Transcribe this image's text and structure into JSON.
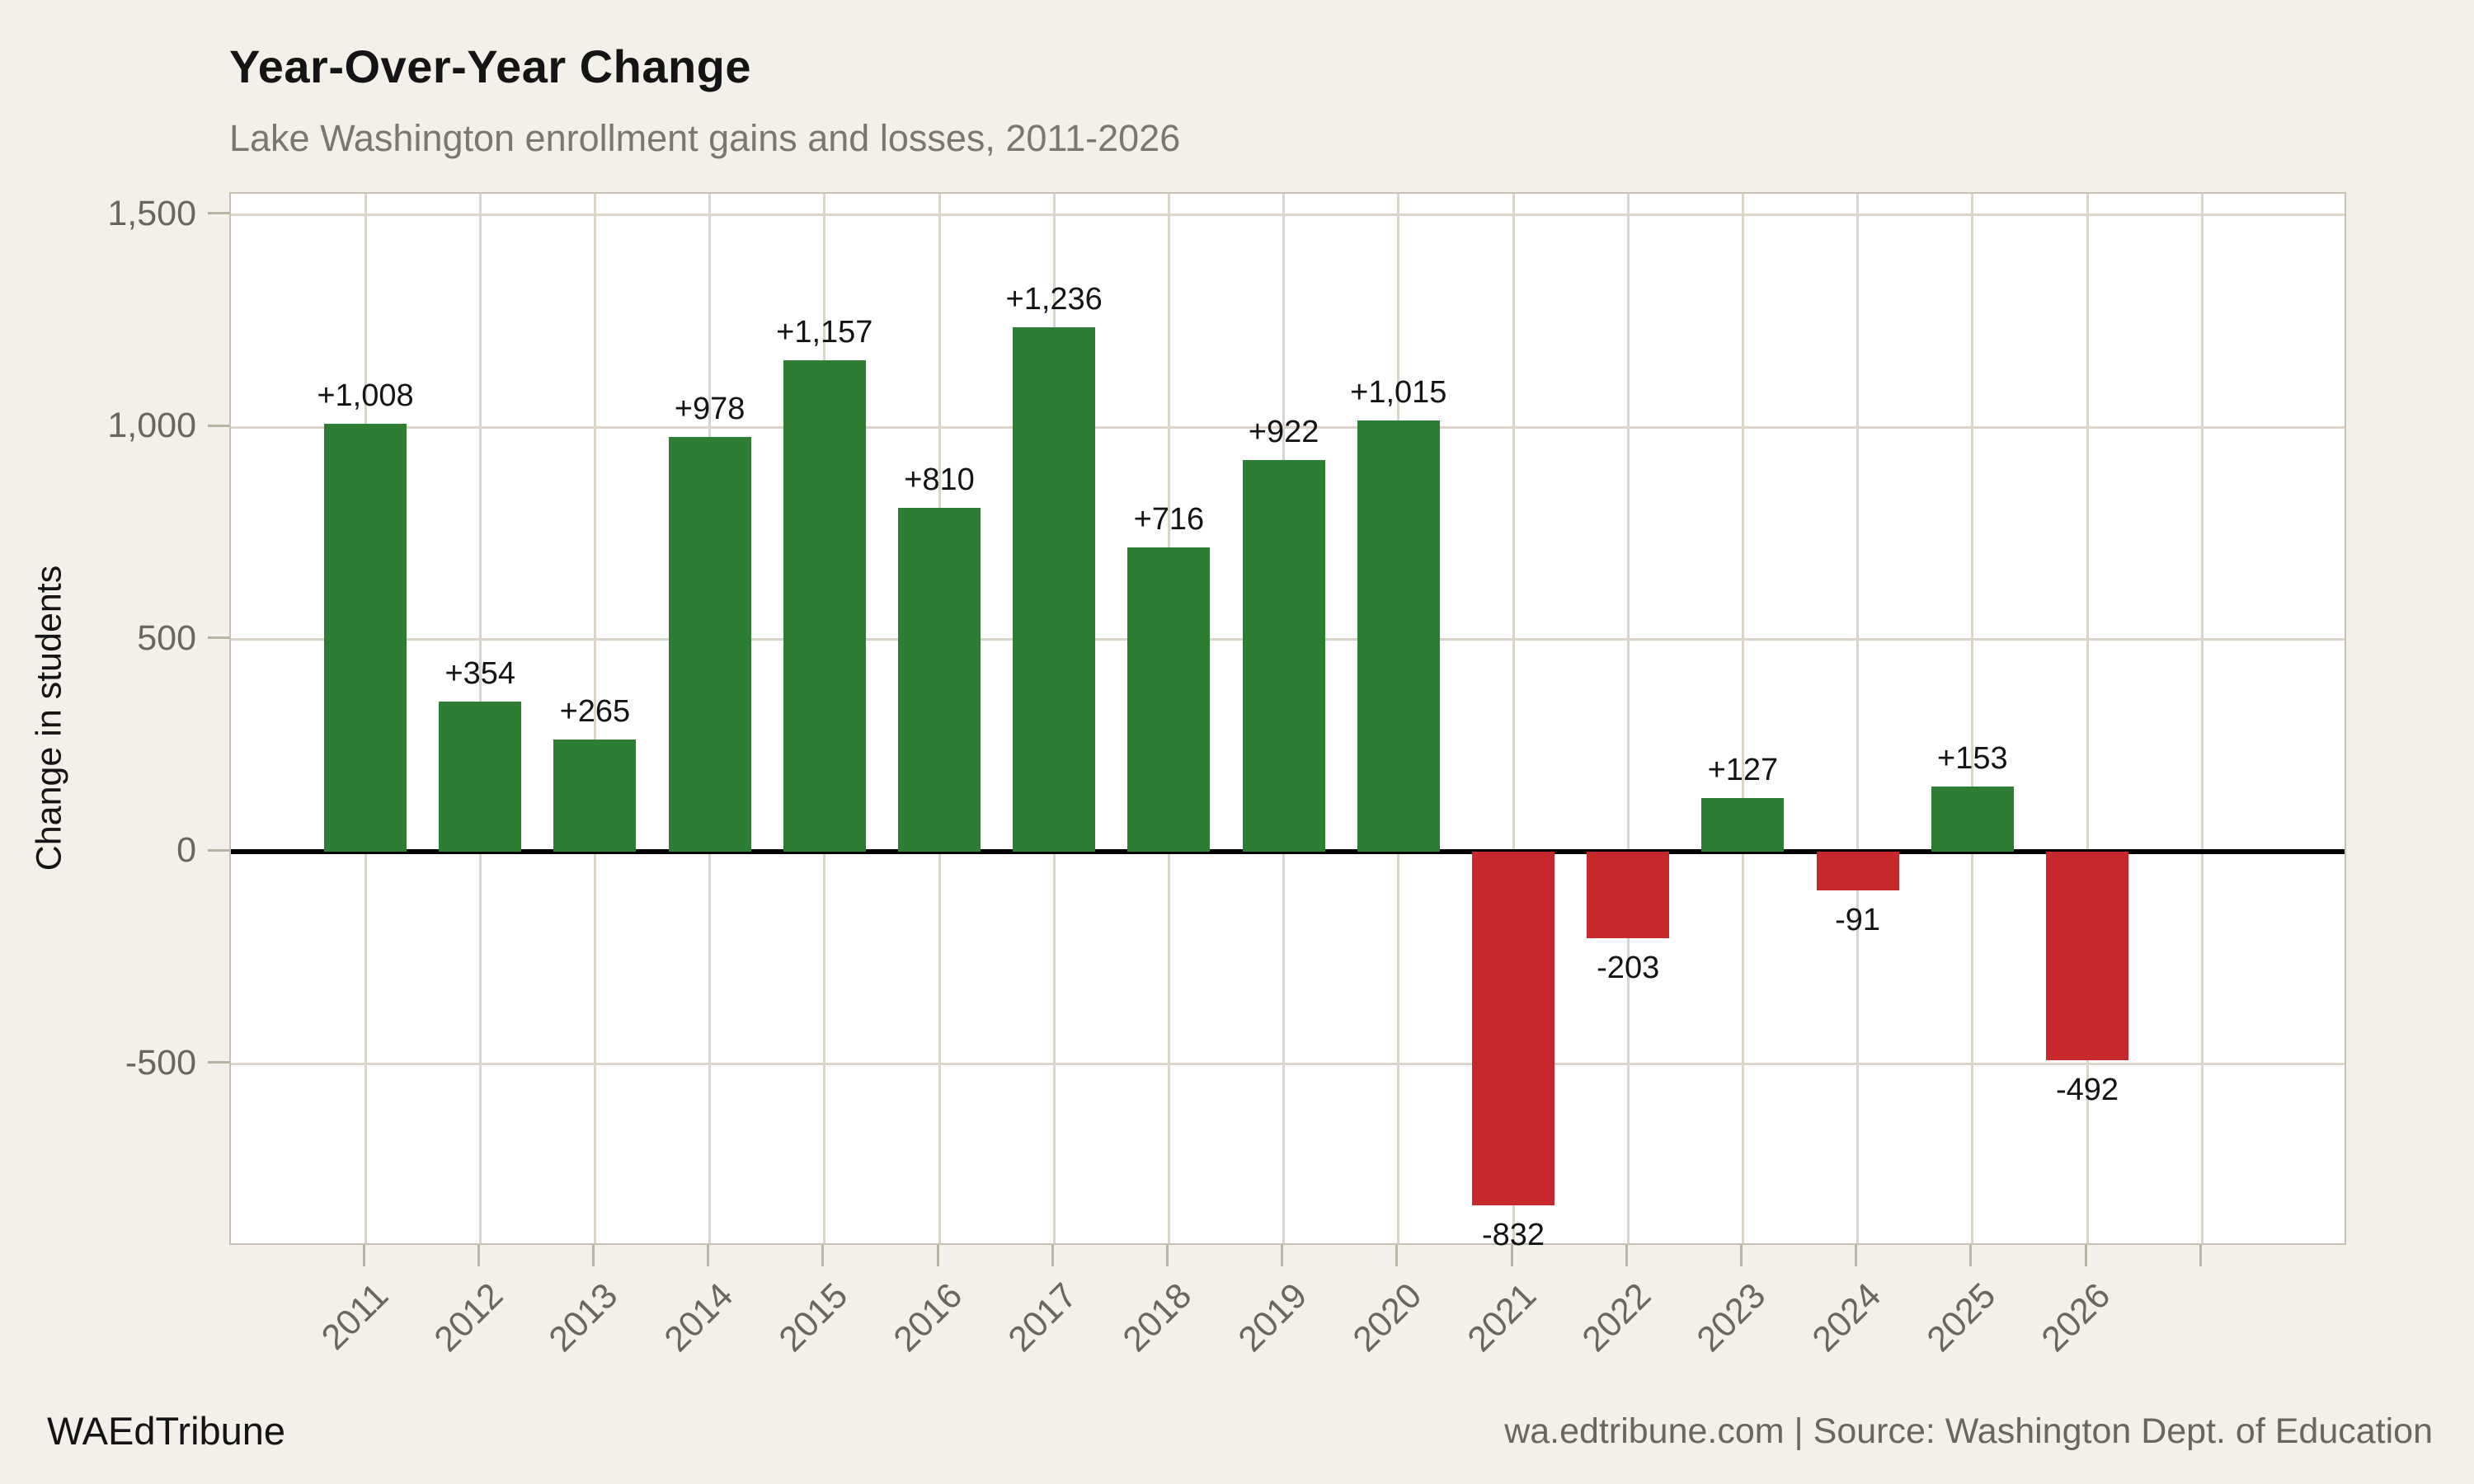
{
  "header": {
    "title": "Year-Over-Year Change",
    "subtitle": "Lake Washington enrollment gains and losses, 2011-2026"
  },
  "footer": {
    "brand": "WAEdTribune",
    "source": "wa.edtribune.com | Source: Washington Dept. of Education"
  },
  "colors": {
    "background": "#f3efe9",
    "plot_background": "#ffffff",
    "grid": "#dad4c9",
    "axis_line": "#b9b3a6",
    "axis_text": "#6b655e",
    "positive_bar": "#2e7d32",
    "negative_bar": "#c6282c",
    "zero_line": "#000000",
    "title_text": "#141414",
    "subtitle_text": "#7c766e"
  },
  "chart_data": {
    "type": "bar",
    "title": "Year-Over-Year Change",
    "subtitle": "Lake Washington enrollment gains and losses, 2011-2026",
    "xlabel": "",
    "ylabel": "Change in students",
    "categories": [
      "2011",
      "2012",
      "2013",
      "2014",
      "2015",
      "2016",
      "2017",
      "2018",
      "2019",
      "2020",
      "2021",
      "2022",
      "2023",
      "2024",
      "2025",
      "2026"
    ],
    "values": [
      1008,
      354,
      265,
      978,
      1157,
      810,
      1236,
      716,
      922,
      1015,
      -832,
      -203,
      127,
      -91,
      153,
      -492
    ],
    "value_labels": [
      "+1,008",
      "+354",
      "+265",
      "+978",
      "+1,157",
      "+810",
      "+1,236",
      "+716",
      "+922",
      "+1,015",
      "-832",
      "-203",
      "+127",
      "-91",
      "+153",
      "-492"
    ],
    "ylim": [
      -930,
      1550
    ],
    "yticks": [
      {
        "value": 1500,
        "label": "1,500"
      },
      {
        "value": 1000,
        "label": "1,000"
      },
      {
        "value": 500,
        "label": "500"
      },
      {
        "value": 0,
        "label": "0"
      },
      {
        "value": -500,
        "label": "-500"
      }
    ],
    "grid": true,
    "legend": false,
    "positive_color": "#2e7d32",
    "negative_color": "#c6282c"
  }
}
